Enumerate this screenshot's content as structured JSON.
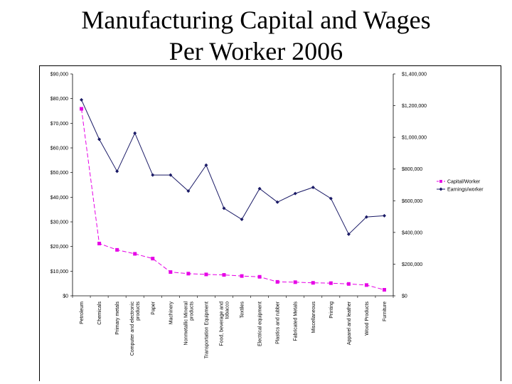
{
  "slide": {
    "title_line1": "Manufacturing Capital and Wages",
    "title_line2": "Per Worker 2006"
  },
  "colors": {
    "capital": "#e600e6",
    "earnings": "#1a1a66"
  },
  "chart_data": {
    "type": "line",
    "categories": [
      "Petroleum",
      "Chemicals",
      "Primary metals",
      "Computer and electronic products",
      "Paper",
      "Machinery",
      "Nonmetallic Mineral products",
      "Transportation Equipment",
      "Food, beverage and tobacco",
      "Textiles",
      "Electrical equipment",
      "Plastics and rubber",
      "Fabricated Metals",
      "Miscellaneous",
      "Printing",
      "Apparel and leather",
      "Wood Products",
      "Furniture"
    ],
    "category_lines": [
      [
        "Petroleum"
      ],
      [
        "Chemicals"
      ],
      [
        "Primary metals"
      ],
      [
        "Computer and electronic",
        "products"
      ],
      [
        "Paper"
      ],
      [
        "Machinery"
      ],
      [
        "Nonmetallic Mineral",
        "products"
      ],
      [
        "Transportation Equipment"
      ],
      [
        "Food, beverage and",
        "tobacco"
      ],
      [
        "Textiles"
      ],
      [
        "Electrical equipment"
      ],
      [
        "Plastics and rubber"
      ],
      [
        "Fabricated Metals"
      ],
      [
        "Miscellaneous"
      ],
      [
        "Printing"
      ],
      [
        "Apparel and leather"
      ],
      [
        "Wood Products"
      ],
      [
        "Furniture"
      ]
    ],
    "left_axis": {
      "ylim": [
        0,
        90000
      ],
      "ticks": [
        0,
        10000,
        20000,
        30000,
        40000,
        50000,
        60000,
        70000,
        80000,
        90000
      ],
      "tick_labels": [
        "$0",
        "$10,000",
        "$20,000",
        "$30,000",
        "$40,000",
        "$50,000",
        "$60,000",
        "$70,000",
        "$80,000",
        "$90,000"
      ]
    },
    "right_axis": {
      "ylim": [
        0,
        1400000
      ],
      "ticks": [
        0,
        200000,
        400000,
        600000,
        800000,
        1000000,
        1200000,
        1400000
      ],
      "tick_labels": [
        "$0",
        "$200,000",
        "$400,000",
        "$600,000",
        "$800,000",
        "$1,000,000",
        "$1,200,000",
        "$1,400,000"
      ]
    },
    "series": [
      {
        "name": "Capital/Worker",
        "axis": "right",
        "marker": "square",
        "dash": true,
        "values": [
          1180000,
          330000,
          290000,
          265000,
          235000,
          150000,
          140000,
          135000,
          132000,
          125000,
          120000,
          88000,
          86000,
          82000,
          80000,
          75000,
          68000,
          38000
        ]
      },
      {
        "name": "Earnings/worker",
        "axis": "left",
        "marker": "diamond",
        "dash": false,
        "values": [
          79500,
          63500,
          50500,
          66000,
          49000,
          49000,
          42500,
          53000,
          35500,
          31000,
          43500,
          38000,
          41500,
          44000,
          39500,
          25000,
          32000,
          32500
        ]
      }
    ],
    "legend_position": "right"
  }
}
